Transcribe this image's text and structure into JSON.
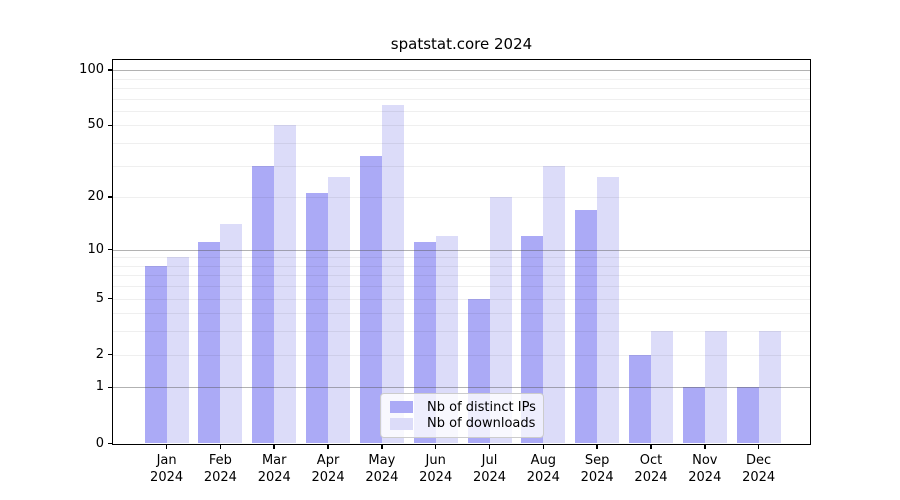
{
  "figure_title": "spatstat.core 2024",
  "chart_data": {
    "type": "bar",
    "title": "spatstat.core 2024",
    "x_axis": {
      "categories": [
        {
          "month": "Jan",
          "year": "2024"
        },
        {
          "month": "Feb",
          "year": "2024"
        },
        {
          "month": "Mar",
          "year": "2024"
        },
        {
          "month": "Apr",
          "year": "2024"
        },
        {
          "month": "May",
          "year": "2024"
        },
        {
          "month": "Jun",
          "year": "2024"
        },
        {
          "month": "Jul",
          "year": "2024"
        },
        {
          "month": "Aug",
          "year": "2024"
        },
        {
          "month": "Sep",
          "year": "2024"
        },
        {
          "month": "Oct",
          "year": "2024"
        },
        {
          "month": "Nov",
          "year": "2024"
        },
        {
          "month": "Dec",
          "year": "2024"
        }
      ]
    },
    "y_axis": {
      "scale": "log1p",
      "tick_labels": [
        "0",
        "1",
        "2",
        "5",
        "10",
        "20",
        "50",
        "100"
      ],
      "range": [
        0,
        113
      ],
      "grid": true
    },
    "series": [
      {
        "name": "Nb of distinct IPs",
        "color": "#abaaf6",
        "values": [
          8,
          11,
          30,
          21,
          34,
          11,
          5,
          12,
          17,
          2,
          1,
          1
        ]
      },
      {
        "name": "Nb of downloads",
        "color": "#dcdcf9",
        "values": [
          9,
          14,
          50,
          26,
          65,
          12,
          20,
          30,
          26,
          3,
          3,
          3
        ]
      }
    ],
    "legend_position": "bottom-center"
  }
}
